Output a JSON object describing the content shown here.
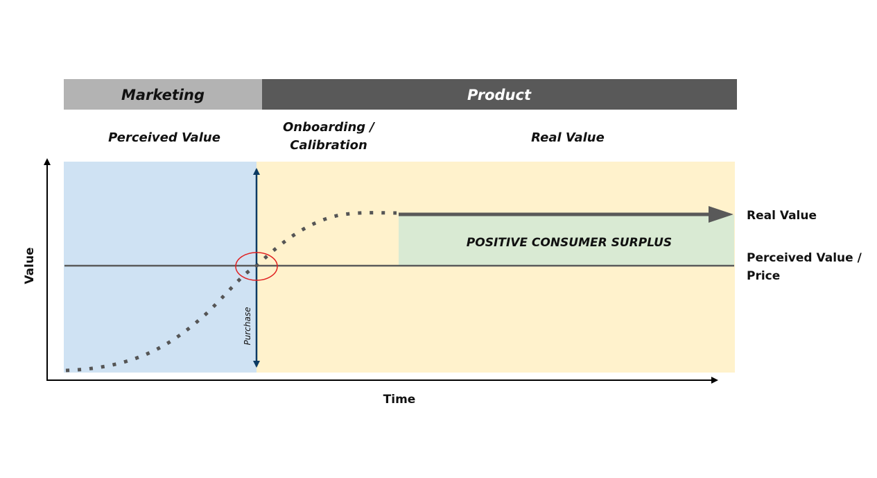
{
  "header": {
    "marketing": "Marketing",
    "product": "Product"
  },
  "columns": {
    "perceived_value": "Perceived Value",
    "onboarding_line1": "Onboarding /",
    "onboarding_line2": "Calibration",
    "real_value": "Real Value"
  },
  "axes": {
    "y_label": "Value",
    "x_label": "Time"
  },
  "lines": {
    "real_value_label": "Real Value",
    "perceived_label_line1": "Perceived Value /",
    "perceived_label_line2": "Price"
  },
  "regions": {
    "surplus": "POSITIVE CONSUMER SURPLUS"
  },
  "markers": {
    "purchase": "Purchase"
  },
  "colors": {
    "marketing_header": "#b3b3b3",
    "product_header": "#595959",
    "perceived_region": "#cfe2f3",
    "product_region": "#fff2cc",
    "surplus_region": "#d9ead3",
    "purchase_line": "#0b3a63",
    "highlight_circle": "#e02020",
    "value_lines": "#595959"
  }
}
